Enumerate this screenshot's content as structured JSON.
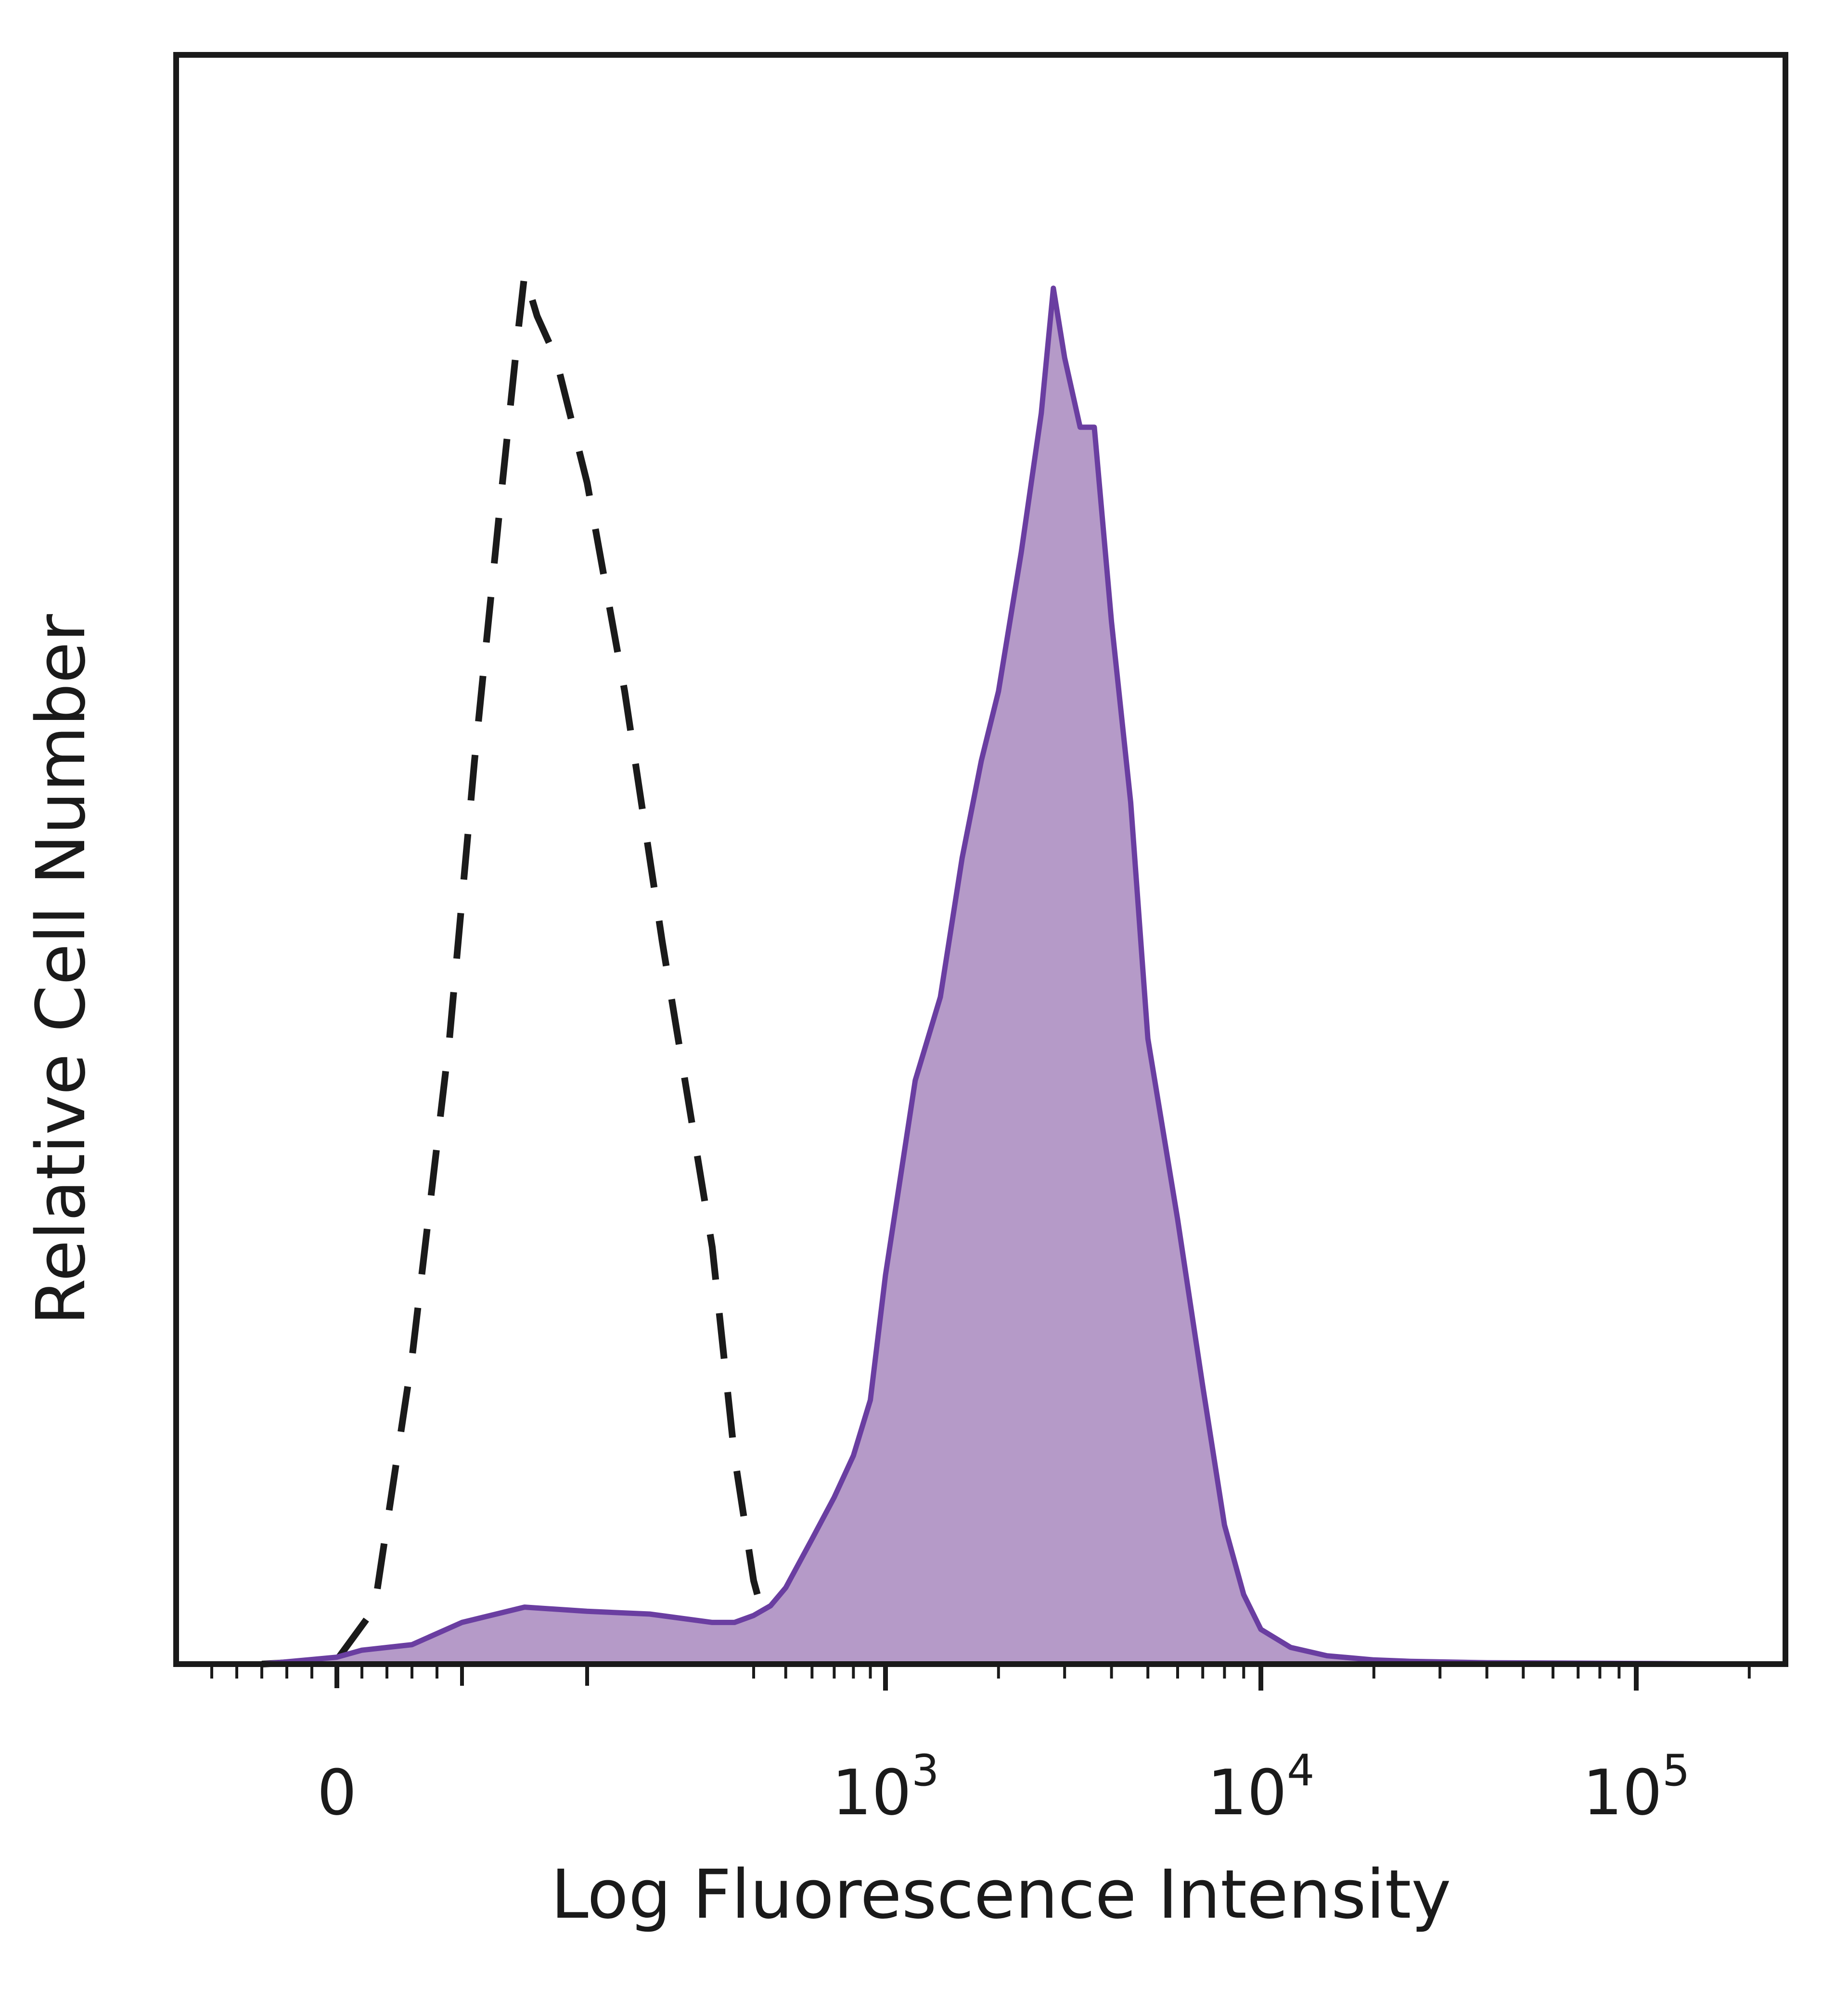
{
  "chart_data": {
    "type": "area",
    "title": "",
    "xlabel": "Log Fluorescence Intensity",
    "ylabel": "Relative Cell Number",
    "x_scale": "biexponential",
    "ylim": [
      0,
      100
    ],
    "grid": false,
    "legend": "none",
    "x_tick_labels": [
      {
        "value": 0,
        "base": "0",
        "exp": ""
      },
      {
        "value": 1000,
        "base": "10",
        "exp": "3"
      },
      {
        "value": 10000,
        "base": "10",
        "exp": "4"
      },
      {
        "value": 100000,
        "base": "10",
        "exp": "5"
      }
    ],
    "series": [
      {
        "style": "dashed",
        "color": "#1a1a1a",
        "x": [
          -60,
          0,
          30,
          60,
          90,
          110,
          130,
          145,
          150,
          160,
          175,
          200,
          230,
          260,
          300,
          350,
          400,
          450,
          500,
          550
        ],
        "y": [
          0,
          0.3,
          4,
          22,
          45,
          65,
          83,
          96,
          100,
          97,
          94,
          85,
          70,
          52,
          30,
          15,
          6,
          1.5,
          0.3,
          0
        ]
      },
      {
        "style": "filled",
        "color": "#6a3ea1",
        "fill": "#b59ac8",
        "x": [
          -60,
          0,
          20,
          60,
          100,
          150,
          200,
          250,
          300,
          350,
          400,
          450,
          500,
          600,
          700,
          800,
          900,
          1000,
          1200,
          1400,
          1600,
          1800,
          2000,
          2300,
          2600,
          2800,
          3000,
          3300,
          3600,
          4000,
          4500,
          5000,
          6000,
          7000,
          8000,
          9000,
          10000,
          12000,
          15000,
          20000,
          25000,
          40000,
          100000,
          200000
        ],
        "y": [
          0,
          0.5,
          1,
          1.4,
          3,
          4.1,
          3.8,
          3.6,
          3,
          3,
          3.5,
          4.2,
          5.5,
          9,
          12,
          15,
          19,
          28,
          42,
          48,
          58,
          65,
          70,
          80,
          90,
          99,
          94,
          89,
          89,
          75,
          62,
          45,
          32,
          20,
          10,
          5,
          2.5,
          1.2,
          0.6,
          0.3,
          0.2,
          0.1,
          0.05,
          0
        ]
      }
    ]
  }
}
